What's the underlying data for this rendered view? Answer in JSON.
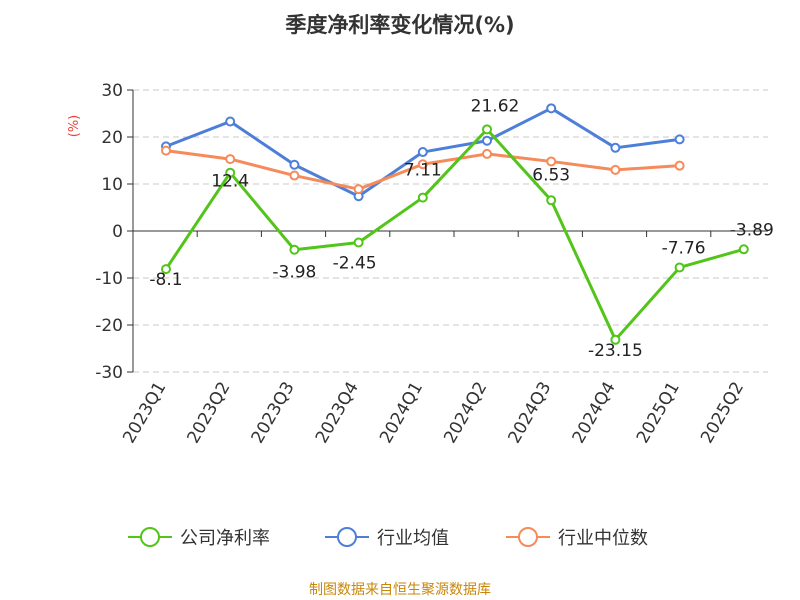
{
  "chart_data": {
    "type": "line",
    "title": "季度净利率变化情况(%)",
    "ylabel": "(%)",
    "xlabel": "",
    "categories": [
      "2023Q1",
      "2023Q2",
      "2023Q3",
      "2023Q4",
      "2024Q1",
      "2024Q2",
      "2024Q3",
      "2024Q4",
      "2025Q1",
      "2025Q2"
    ],
    "ylim": [
      -30,
      30
    ],
    "yticks": [
      30,
      20,
      10,
      0,
      -10,
      -20,
      -30
    ],
    "grid": true,
    "legend_position": "bottom",
    "series": [
      {
        "name": "公司净利率",
        "color": "#52c41a",
        "values": [
          -8.1,
          12.4,
          -3.98,
          -2.45,
          7.11,
          21.62,
          6.53,
          -23.15,
          -7.76,
          -3.89
        ],
        "labels": [
          "-8.1",
          "12.4",
          "-3.98",
          "-2.45",
          "7.11",
          "21.62",
          "6.53",
          "-23.15",
          "-7.76",
          "-3.89"
        ]
      },
      {
        "name": "行业均值",
        "color": "#4e7fd8",
        "values": [
          18.0,
          23.3,
          14.1,
          7.4,
          16.8,
          19.2,
          26.1,
          17.7,
          19.5,
          null
        ]
      },
      {
        "name": "行业中位数",
        "color": "#f58a5b",
        "values": [
          17.1,
          15.3,
          11.8,
          8.9,
          14.2,
          16.4,
          14.8,
          13.0,
          13.9,
          null
        ]
      }
    ]
  },
  "source_text": "制图数据来自恒生聚源数据库"
}
